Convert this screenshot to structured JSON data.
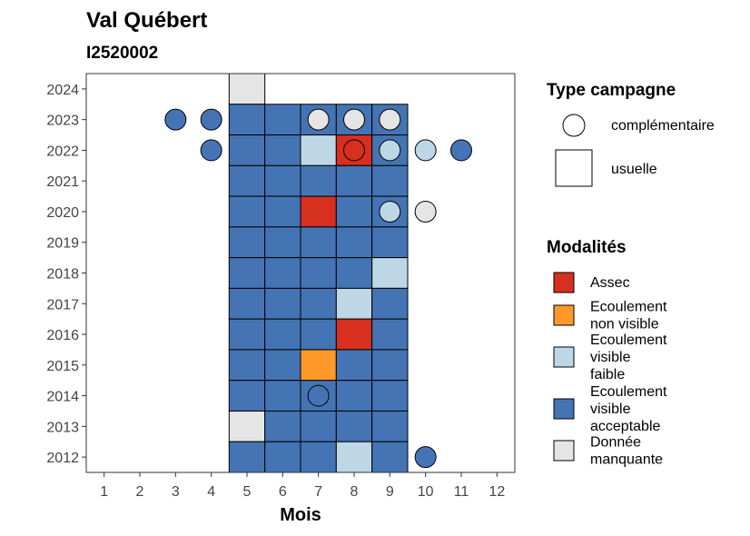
{
  "chart_data": {
    "type": "heatmap",
    "title": "Val Québert",
    "subtitle": "I2520002",
    "xlabel": "Mois",
    "ylabel": "",
    "x_ticks": [
      1,
      2,
      3,
      4,
      5,
      6,
      7,
      8,
      9,
      10,
      11,
      12
    ],
    "y_ticks": [
      2012,
      2013,
      2014,
      2015,
      2016,
      2017,
      2018,
      2019,
      2020,
      2021,
      2022,
      2023,
      2024
    ],
    "xlim": [
      0.5,
      12.5
    ],
    "ylim": [
      2011.5,
      2024.5
    ],
    "grid": false,
    "legend_position": "right",
    "colors": {
      "Assec": "#d7301f",
      "Ecoulement non visible": "#fe9929",
      "Ecoulement visible faible": "#bdd7e7",
      "Ecoulement visible acceptable": "#4574b4",
      "Donnée manquante": "#e5e5e5"
    },
    "legend_shape": {
      "title": "Type campagne",
      "items": [
        {
          "label": "complémentaire",
          "shape": "circle"
        },
        {
          "label": "usuelle",
          "shape": "square"
        }
      ]
    },
    "legend_fill": {
      "title": "Modalités",
      "items": [
        {
          "key": "Assec",
          "lines": [
            "Assec"
          ]
        },
        {
          "key": "Ecoulement non visible",
          "lines": [
            "Ecoulement",
            "non visible"
          ]
        },
        {
          "key": "Ecoulement visible faible",
          "lines": [
            "Ecoulement",
            "visible",
            "faible"
          ]
        },
        {
          "key": "Ecoulement visible acceptable",
          "lines": [
            "Ecoulement",
            "visible",
            "acceptable"
          ]
        },
        {
          "key": "Donnée manquante",
          "lines": [
            "Donnée",
            "manquante"
          ]
        }
      ]
    },
    "usuelle": [
      {
        "year": 2024,
        "month": 5,
        "value": "Donnée manquante"
      },
      {
        "year": 2023,
        "month": 5,
        "value": "Ecoulement visible acceptable"
      },
      {
        "year": 2023,
        "month": 6,
        "value": "Ecoulement visible acceptable"
      },
      {
        "year": 2023,
        "month": 7,
        "value": "Ecoulement visible acceptable"
      },
      {
        "year": 2023,
        "month": 8,
        "value": "Ecoulement visible acceptable"
      },
      {
        "year": 2023,
        "month": 9,
        "value": "Ecoulement visible acceptable"
      },
      {
        "year": 2022,
        "month": 5,
        "value": "Ecoulement visible acceptable"
      },
      {
        "year": 2022,
        "month": 6,
        "value": "Ecoulement visible acceptable"
      },
      {
        "year": 2022,
        "month": 7,
        "value": "Ecoulement visible faible"
      },
      {
        "year": 2022,
        "month": 8,
        "value": "Assec"
      },
      {
        "year": 2022,
        "month": 9,
        "value": "Ecoulement visible acceptable"
      },
      {
        "year": 2021,
        "month": 5,
        "value": "Ecoulement visible acceptable"
      },
      {
        "year": 2021,
        "month": 6,
        "value": "Ecoulement visible acceptable"
      },
      {
        "year": 2021,
        "month": 7,
        "value": "Ecoulement visible acceptable"
      },
      {
        "year": 2021,
        "month": 8,
        "value": "Ecoulement visible acceptable"
      },
      {
        "year": 2021,
        "month": 9,
        "value": "Ecoulement visible acceptable"
      },
      {
        "year": 2020,
        "month": 5,
        "value": "Ecoulement visible acceptable"
      },
      {
        "year": 2020,
        "month": 6,
        "value": "Ecoulement visible acceptable"
      },
      {
        "year": 2020,
        "month": 7,
        "value": "Assec"
      },
      {
        "year": 2020,
        "month": 8,
        "value": "Ecoulement visible acceptable"
      },
      {
        "year": 2020,
        "month": 9,
        "value": "Ecoulement visible acceptable"
      },
      {
        "year": 2019,
        "month": 5,
        "value": "Ecoulement visible acceptable"
      },
      {
        "year": 2019,
        "month": 6,
        "value": "Ecoulement visible acceptable"
      },
      {
        "year": 2019,
        "month": 7,
        "value": "Ecoulement visible acceptable"
      },
      {
        "year": 2019,
        "month": 8,
        "value": "Ecoulement visible acceptable"
      },
      {
        "year": 2019,
        "month": 9,
        "value": "Ecoulement visible acceptable"
      },
      {
        "year": 2018,
        "month": 5,
        "value": "Ecoulement visible acceptable"
      },
      {
        "year": 2018,
        "month": 6,
        "value": "Ecoulement visible acceptable"
      },
      {
        "year": 2018,
        "month": 7,
        "value": "Ecoulement visible acceptable"
      },
      {
        "year": 2018,
        "month": 8,
        "value": "Ecoulement visible acceptable"
      },
      {
        "year": 2018,
        "month": 9,
        "value": "Ecoulement visible faible"
      },
      {
        "year": 2017,
        "month": 5,
        "value": "Ecoulement visible acceptable"
      },
      {
        "year": 2017,
        "month": 6,
        "value": "Ecoulement visible acceptable"
      },
      {
        "year": 2017,
        "month": 7,
        "value": "Ecoulement visible acceptable"
      },
      {
        "year": 2017,
        "month": 8,
        "value": "Ecoulement visible faible"
      },
      {
        "year": 2017,
        "month": 9,
        "value": "Ecoulement visible acceptable"
      },
      {
        "year": 2016,
        "month": 5,
        "value": "Ecoulement visible acceptable"
      },
      {
        "year": 2016,
        "month": 6,
        "value": "Ecoulement visible acceptable"
      },
      {
        "year": 2016,
        "month": 7,
        "value": "Ecoulement visible acceptable"
      },
      {
        "year": 2016,
        "month": 8,
        "value": "Assec"
      },
      {
        "year": 2016,
        "month": 9,
        "value": "Ecoulement visible acceptable"
      },
      {
        "year": 2015,
        "month": 5,
        "value": "Ecoulement visible acceptable"
      },
      {
        "year": 2015,
        "month": 6,
        "value": "Ecoulement visible acceptable"
      },
      {
        "year": 2015,
        "month": 7,
        "value": "Ecoulement non visible"
      },
      {
        "year": 2015,
        "month": 8,
        "value": "Ecoulement visible acceptable"
      },
      {
        "year": 2015,
        "month": 9,
        "value": "Ecoulement visible acceptable"
      },
      {
        "year": 2014,
        "month": 5,
        "value": "Ecoulement visible acceptable"
      },
      {
        "year": 2014,
        "month": 6,
        "value": "Ecoulement visible acceptable"
      },
      {
        "year": 2014,
        "month": 7,
        "value": "Ecoulement visible acceptable"
      },
      {
        "year": 2014,
        "month": 8,
        "value": "Ecoulement visible acceptable"
      },
      {
        "year": 2014,
        "month": 9,
        "value": "Ecoulement visible acceptable"
      },
      {
        "year": 2013,
        "month": 5,
        "value": "Donnée manquante"
      },
      {
        "year": 2013,
        "month": 6,
        "value": "Ecoulement visible acceptable"
      },
      {
        "year": 2013,
        "month": 7,
        "value": "Ecoulement visible acceptable"
      },
      {
        "year": 2013,
        "month": 8,
        "value": "Ecoulement visible acceptable"
      },
      {
        "year": 2013,
        "month": 9,
        "value": "Ecoulement visible acceptable"
      },
      {
        "year": 2012,
        "month": 5,
        "value": "Ecoulement visible acceptable"
      },
      {
        "year": 2012,
        "month": 6,
        "value": "Ecoulement visible acceptable"
      },
      {
        "year": 2012,
        "month": 7,
        "value": "Ecoulement visible acceptable"
      },
      {
        "year": 2012,
        "month": 8,
        "value": "Ecoulement visible faible"
      },
      {
        "year": 2012,
        "month": 9,
        "value": "Ecoulement visible acceptable"
      }
    ],
    "complementaire": [
      {
        "year": 2023,
        "month": 3,
        "value": "Ecoulement visible acceptable"
      },
      {
        "year": 2023,
        "month": 4,
        "value": "Ecoulement visible acceptable"
      },
      {
        "year": 2023,
        "month": 7,
        "value": "Donnée manquante"
      },
      {
        "year": 2023,
        "month": 8,
        "value": "Donnée manquante"
      },
      {
        "year": 2023,
        "month": 9,
        "value": "Donnée manquante"
      },
      {
        "year": 2022,
        "month": 4,
        "value": "Ecoulement visible acceptable"
      },
      {
        "year": 2022,
        "month": 8,
        "value": "Assec"
      },
      {
        "year": 2022,
        "month": 9,
        "value": "Ecoulement visible faible"
      },
      {
        "year": 2022,
        "month": 10,
        "value": "Ecoulement visible faible"
      },
      {
        "year": 2022,
        "month": 11,
        "value": "Ecoulement visible acceptable"
      },
      {
        "year": 2020,
        "month": 9,
        "value": "Ecoulement visible faible"
      },
      {
        "year": 2020,
        "month": 10,
        "value": "Donnée manquante"
      },
      {
        "year": 2014,
        "month": 7,
        "value": "Ecoulement visible acceptable"
      },
      {
        "year": 2012,
        "month": 10,
        "value": "Ecoulement visible acceptable"
      }
    ]
  }
}
